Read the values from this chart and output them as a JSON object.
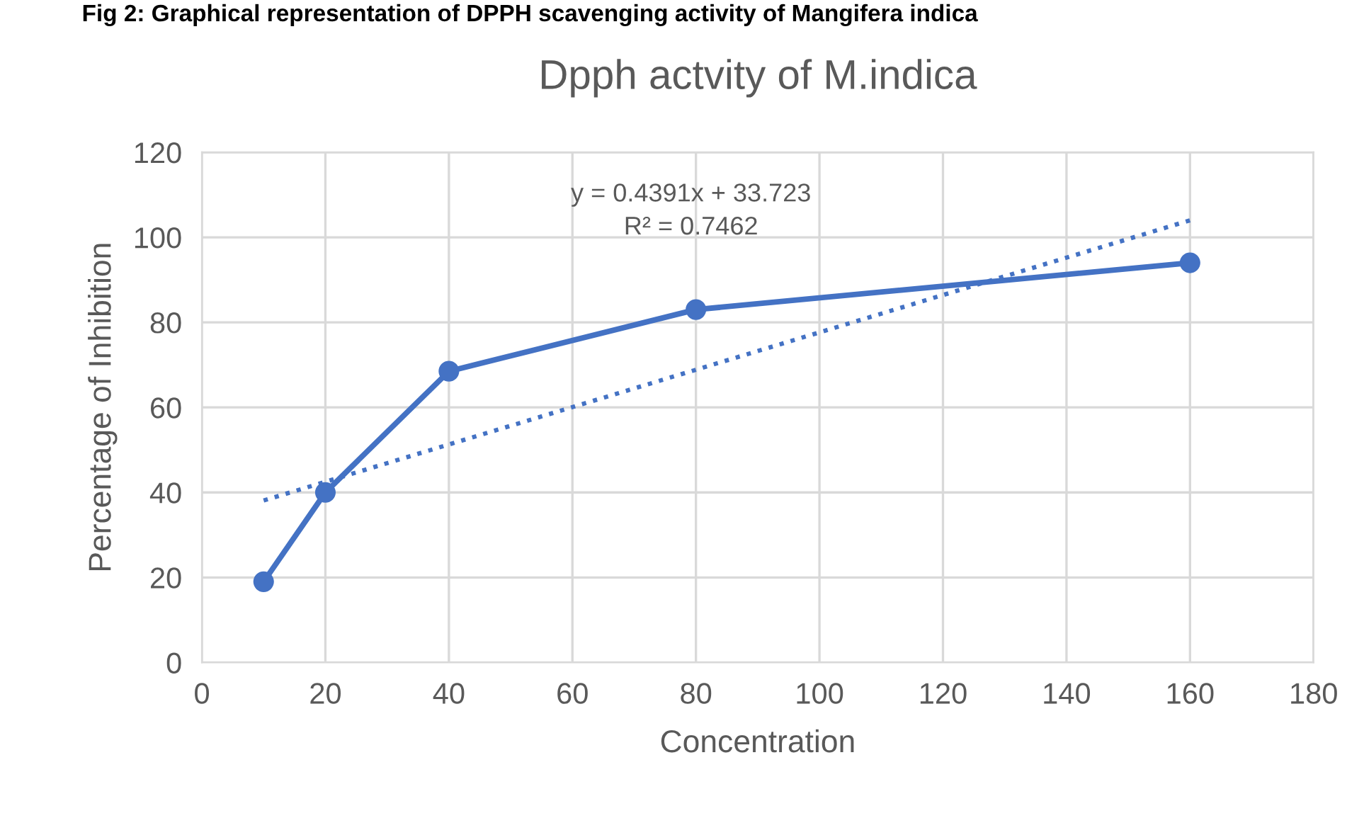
{
  "chart_data": {
    "type": "line",
    "title": "Dpph actvity of M.indica",
    "xlabel": "Concentration",
    "ylabel": "Percentage of Inhibition",
    "annotations": [
      "Fig 2: Graphical representation of DPPH scavenging activity of Mangifera indica",
      "y = 0.4391x + 33.723\nR² = 0.7462"
    ],
    "x": [
      10,
      20,
      40,
      80,
      160
    ],
    "series": [
      {
        "color": "#4472c4",
        "values": [
          19,
          40,
          68.5,
          83,
          94
        ],
        "marker": "circle",
        "line_style": "solid"
      },
      {
        "type": "line",
        "color": "#4472c4",
        "x": [
          10,
          160
        ],
        "values": [
          38.1,
          104.0
        ],
        "marker": "none",
        "line_style": "dotted"
      }
    ],
    "xlim": [
      0,
      180
    ],
    "xticks": [
      0,
      20,
      40,
      60,
      80,
      100,
      120,
      140,
      160,
      180
    ],
    "ylim": [
      0,
      120
    ],
    "yticks": [
      0,
      20,
      40,
      60,
      80,
      100,
      120
    ],
    "grid": true,
    "legend": false
  }
}
